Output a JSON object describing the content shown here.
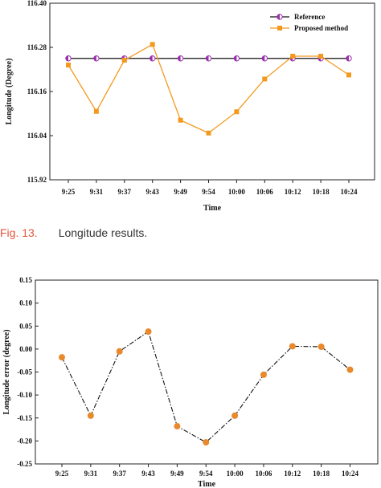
{
  "caption": {
    "label": "Fig. 13.",
    "text": "Longitude results."
  },
  "chart_data": [
    {
      "type": "line",
      "title": "",
      "xlabel": "Time",
      "ylabel": "Longitude (Degree)",
      "categories": [
        "9:25",
        "9:31",
        "9:37",
        "9:43",
        "9:49",
        "9:54",
        "10:00",
        "10:06",
        "10:12",
        "10:18",
        "10:24"
      ],
      "ylim": [
        115.92,
        116.4
      ],
      "yticks": [
        "115.92",
        "116.04",
        "116.16",
        "116.28",
        "116.40"
      ],
      "grid": false,
      "legend_position": "top-right",
      "series": [
        {
          "name": "Reference",
          "color": "#111111",
          "marker_color": "#9b2fae",
          "marker": "half-circle",
          "values": [
            116.25,
            116.25,
            116.25,
            116.25,
            116.25,
            116.25,
            116.25,
            116.25,
            116.25,
            116.25,
            116.25
          ]
        },
        {
          "name": "Proposed method",
          "color": "#f39a1e",
          "marker": "square",
          "values": [
            116.232,
            116.106,
            116.245,
            116.288,
            116.082,
            116.047,
            116.105,
            116.194,
            116.256,
            116.256,
            116.205
          ]
        }
      ]
    },
    {
      "type": "line",
      "title": "",
      "xlabel": "Time",
      "ylabel": "Longitude error (degree)",
      "categories": [
        "9:25",
        "9:31",
        "9:37",
        "9:43",
        "9:49",
        "9:54",
        "10:00",
        "10:06",
        "10:12",
        "10:18",
        "10:24"
      ],
      "ylim": [
        -0.25,
        0.15
      ],
      "yticks": [
        "-0.25",
        "-0.20",
        "-0.15",
        "-0.10",
        "-0.05",
        "0.00",
        "0.05",
        "0.10",
        "0.15"
      ],
      "grid": false,
      "line_style": "dash-dot",
      "series": [
        {
          "color": "#e8892c",
          "line_color": "#111111",
          "marker": "circle",
          "values": [
            -0.018,
            -0.145,
            -0.005,
            0.038,
            -0.168,
            -0.203,
            -0.145,
            -0.056,
            0.006,
            0.005,
            -0.045
          ]
        }
      ]
    }
  ]
}
